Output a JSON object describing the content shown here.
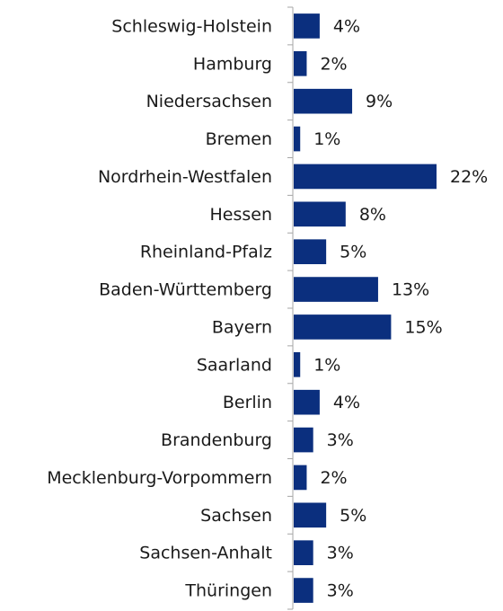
{
  "chart_data": {
    "type": "bar",
    "orientation": "horizontal",
    "color": "#0b2f7e",
    "categories": [
      "Schleswig-Holstein",
      "Hamburg",
      "Niedersachsen",
      "Bremen",
      "Nordrhein-Westfalen",
      "Hessen",
      "Rheinland-Pfalz",
      "Baden-Württemberg",
      "Bayern",
      "Saarland",
      "Berlin",
      "Brandenburg",
      "Mecklenburg-Vorpommern",
      "Sachsen",
      "Sachsen-Anhalt",
      "Thüringen"
    ],
    "values": [
      4,
      2,
      9,
      1,
      22,
      8,
      5,
      13,
      15,
      1,
      4,
      3,
      2,
      5,
      3,
      3
    ],
    "value_labels": [
      "4%",
      "2%",
      "9%",
      "1%",
      "22%",
      "8%",
      "5%",
      "13%",
      "15%",
      "1%",
      "4%",
      "3%",
      "2%",
      "5%",
      "3%",
      "3%"
    ]
  }
}
